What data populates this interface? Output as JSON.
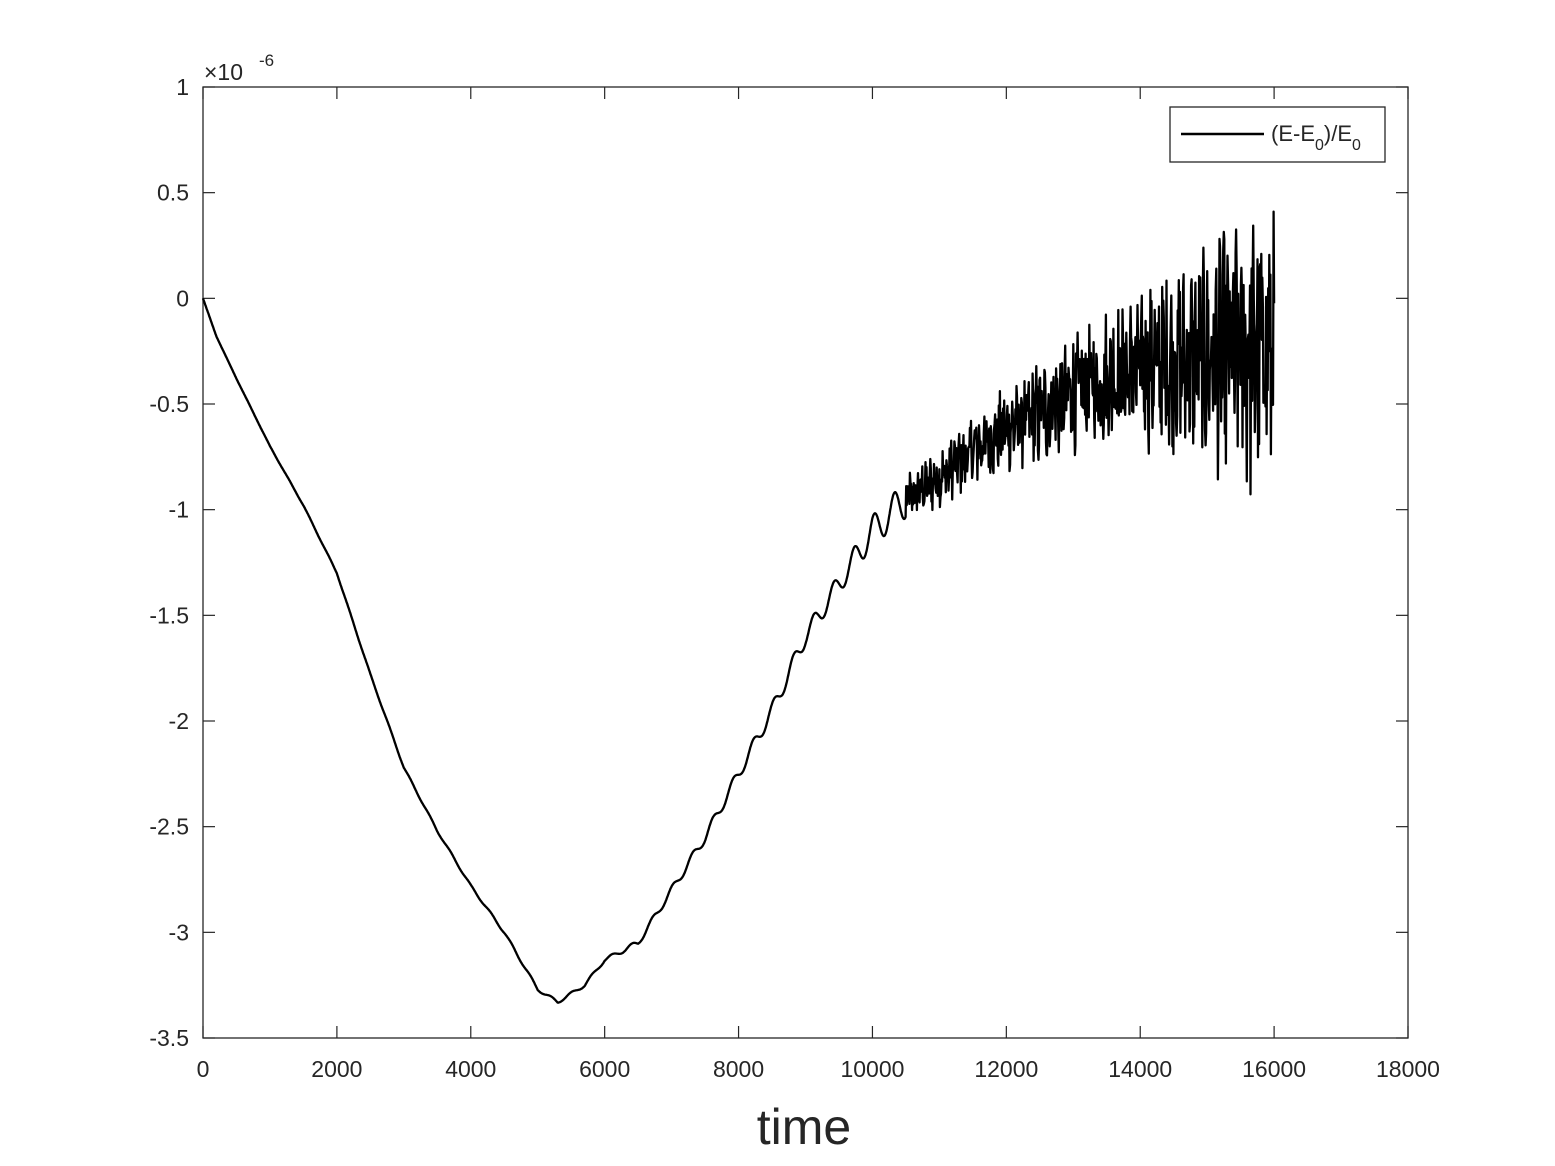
{
  "chart_data": {
    "type": "line",
    "title": "",
    "xlabel": "time",
    "ylabel": "",
    "xlim": [
      0,
      18000
    ],
    "ylim": [
      -3.5,
      1
    ],
    "y_exponent_label": "×10",
    "y_exponent_power": "-6",
    "x_ticks": [
      0,
      2000,
      4000,
      6000,
      8000,
      10000,
      12000,
      14000,
      16000,
      18000
    ],
    "x_tick_labels": [
      "0",
      "2000",
      "4000",
      "6000",
      "8000",
      "10000",
      "12000",
      "14000",
      "16000",
      "18000"
    ],
    "y_ticks": [
      1,
      0.5,
      0,
      -0.5,
      -1,
      -1.5,
      -2,
      -2.5,
      -3,
      -3.5
    ],
    "y_tick_labels": [
      "1",
      "0.5",
      "0",
      "-0.5",
      "-1",
      "-1.5",
      "-2",
      "-2.5",
      "-3",
      "-3.5"
    ],
    "grid": false,
    "box": true,
    "legend_position": "top-right",
    "legend": {
      "label_prefix": "(E-E",
      "label_sub1": "0",
      "label_mid": ")/E",
      "label_sub2": "0"
    },
    "series": [
      {
        "name": "(E-E0)/E0",
        "color": "#000000",
        "line_style": "solid",
        "trend_points": [
          [
            0,
            0
          ],
          [
            200,
            -0.18
          ],
          [
            500,
            -0.38
          ],
          [
            1000,
            -0.7
          ],
          [
            1500,
            -0.98
          ],
          [
            2000,
            -1.3
          ],
          [
            2500,
            -1.78
          ],
          [
            3000,
            -2.22
          ],
          [
            3500,
            -2.52
          ],
          [
            4000,
            -2.78
          ],
          [
            4500,
            -3.0
          ],
          [
            5000,
            -3.27
          ],
          [
            5300,
            -3.33
          ],
          [
            5700,
            -3.25
          ],
          [
            6000,
            -3.13
          ],
          [
            6500,
            -3.05
          ],
          [
            7000,
            -2.8
          ],
          [
            7500,
            -2.55
          ],
          [
            8000,
            -2.25
          ],
          [
            8500,
            -1.95
          ],
          [
            9000,
            -1.6
          ],
          [
            9500,
            -1.35
          ],
          [
            10000,
            -1.1
          ],
          [
            10500,
            -0.95
          ],
          [
            11000,
            -0.85
          ],
          [
            11500,
            -0.72
          ],
          [
            12000,
            -0.62
          ],
          [
            12500,
            -0.55
          ],
          [
            13000,
            -0.45
          ],
          [
            13500,
            -0.38
          ],
          [
            14000,
            -0.33
          ],
          [
            14500,
            -0.3
          ],
          [
            15000,
            -0.28
          ],
          [
            15500,
            -0.25
          ],
          [
            16000,
            -0.22
          ]
        ],
        "oscillation_amplitude": [
          [
            0,
            0
          ],
          [
            6000,
            0.01
          ],
          [
            8000,
            0.035
          ],
          [
            9500,
            0.06
          ],
          [
            10000,
            0.09
          ],
          [
            11000,
            0.13
          ],
          [
            12000,
            0.18
          ],
          [
            13000,
            0.25
          ],
          [
            14000,
            0.34
          ],
          [
            15000,
            0.45
          ],
          [
            15600,
            0.62
          ],
          [
            16000,
            0.62
          ]
        ],
        "x_end": 16000
      }
    ]
  }
}
